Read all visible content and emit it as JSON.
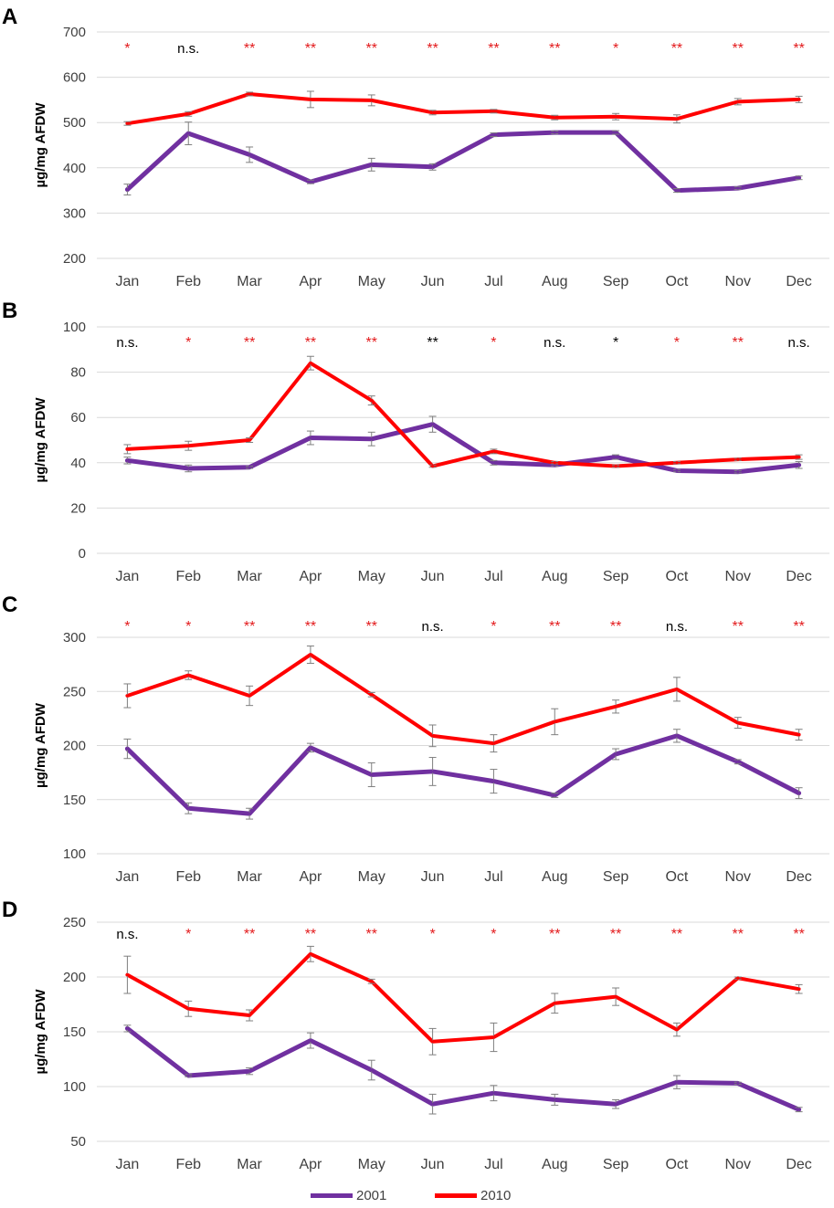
{
  "chart_data": [
    {
      "type": "line",
      "panel_label": "A",
      "ylabel": "µg/mg AFDW",
      "ylim": [
        200,
        700
      ],
      "yticks": [
        "200",
        "300",
        "400",
        "500",
        "600",
        "700"
      ],
      "categories": [
        "Jan",
        "Feb",
        "Mar",
        "Apr",
        "May",
        "Jun",
        "Jul",
        "Aug",
        "Sep",
        "Oct",
        "Nov",
        "Dec"
      ],
      "significance": [
        "*",
        "n.s.",
        "**",
        "**",
        "**",
        "**",
        "**",
        "**",
        "*",
        "**",
        "**",
        "**"
      ],
      "significance_colors": [
        "#e31a1c",
        "#000000",
        "#e31a1c",
        "#e31a1c",
        "#e31a1c",
        "#e31a1c",
        "#e31a1c",
        "#e31a1c",
        "#e31a1c",
        "#e31a1c",
        "#e31a1c",
        "#e31a1c"
      ],
      "series": [
        {
          "name": "2001",
          "color": "#7030a0",
          "values": [
            352,
            476,
            429,
            369,
            407,
            402,
            473,
            478,
            478,
            350,
            355,
            378
          ],
          "errors": [
            12,
            25,
            17,
            4,
            14,
            7,
            4,
            3,
            4,
            4,
            3,
            4
          ]
        },
        {
          "name": "2010",
          "color": "#ff0000",
          "values": [
            498,
            519,
            563,
            551,
            549,
            522,
            525,
            511,
            513,
            508,
            546,
            551
          ],
          "errors": [
            4,
            5,
            4,
            18,
            12,
            5,
            4,
            5,
            7,
            9,
            7,
            7
          ]
        }
      ]
    },
    {
      "type": "line",
      "panel_label": "B",
      "ylabel": "µg/mg AFDW",
      "ylim": [
        0,
        100
      ],
      "yticks": [
        "0",
        "20",
        "40",
        "60",
        "80",
        "100"
      ],
      "categories": [
        "Jan",
        "Feb",
        "Mar",
        "Apr",
        "May",
        "Jun",
        "Jul",
        "Aug",
        "Sep",
        "Oct",
        "Nov",
        "Dec"
      ],
      "significance": [
        "n.s.",
        "*",
        "**",
        "**",
        "**",
        "**",
        "*",
        "n.s.",
        "*",
        "*",
        "**",
        "n.s."
      ],
      "significance_colors": [
        "#000000",
        "#e31a1c",
        "#e31a1c",
        "#e31a1c",
        "#e31a1c",
        "#000000",
        "#e31a1c",
        "#000000",
        "#000000",
        "#e31a1c",
        "#e31a1c",
        "#000000"
      ],
      "series": [
        {
          "name": "2001",
          "color": "#7030a0",
          "values": [
            41,
            37.5,
            38,
            51,
            50.5,
            57,
            40,
            39,
            42.5,
            36.5,
            36,
            39
          ],
          "errors": [
            1.5,
            1.5,
            0.5,
            3,
            3,
            3.5,
            1,
            0.5,
            1,
            0.5,
            0.5,
            1.5
          ]
        },
        {
          "name": "2010",
          "color": "#ff0000",
          "values": [
            46,
            47.5,
            50,
            84,
            67.5,
            38.5,
            45,
            40,
            38.5,
            40,
            41.5,
            42.5
          ],
          "errors": [
            2,
            2,
            1,
            3,
            2,
            0.5,
            1,
            0.5,
            0.5,
            0.5,
            0.5,
            1
          ]
        }
      ]
    },
    {
      "type": "line",
      "panel_label": "C",
      "ylabel": "µg/mg AFDW",
      "ylim": [
        100,
        300
      ],
      "yticks": [
        "100",
        "150",
        "200",
        "250",
        "300"
      ],
      "categories": [
        "Jan",
        "Feb",
        "Mar",
        "Apr",
        "May",
        "Jun",
        "Jul",
        "Aug",
        "Sep",
        "Oct",
        "Nov",
        "Dec"
      ],
      "significance": [
        "*",
        "*",
        "**",
        "**",
        "**",
        "n.s.",
        "*",
        "**",
        "**",
        "n.s.",
        "**",
        "**"
      ],
      "significance_colors": [
        "#e31a1c",
        "#e31a1c",
        "#e31a1c",
        "#e31a1c",
        "#e31a1c",
        "#000000",
        "#e31a1c",
        "#e31a1c",
        "#e31a1c",
        "#000000",
        "#e31a1c",
        "#e31a1c"
      ],
      "series": [
        {
          "name": "2001",
          "color": "#7030a0",
          "values": [
            197,
            142,
            137,
            198,
            173,
            176,
            167,
            154,
            192,
            209,
            185,
            156
          ],
          "errors": [
            9,
            5,
            5,
            4,
            11,
            13,
            11,
            2,
            5,
            6,
            2,
            5
          ]
        },
        {
          "name": "2010",
          "color": "#ff0000",
          "values": [
            246,
            265,
            246,
            284,
            247,
            209,
            202,
            222,
            236,
            252,
            221,
            210
          ],
          "errors": [
            11,
            4,
            9,
            8,
            2,
            10,
            8,
            12,
            6,
            11,
            5,
            5
          ]
        }
      ]
    },
    {
      "type": "line",
      "panel_label": "D",
      "ylabel": "µg/mg AFDW",
      "ylim": [
        50,
        250
      ],
      "yticks": [
        "50",
        "100",
        "150",
        "200",
        "250"
      ],
      "categories": [
        "Jan",
        "Feb",
        "Mar",
        "Apr",
        "May",
        "Jun",
        "Jul",
        "Aug",
        "Sep",
        "Oct",
        "Nov",
        "Dec"
      ],
      "significance": [
        "n.s.",
        "*",
        "**",
        "**",
        "**",
        "*",
        "*",
        "**",
        "**",
        "**",
        "**",
        "**"
      ],
      "significance_colors": [
        "#000000",
        "#e31a1c",
        "#e31a1c",
        "#e31a1c",
        "#e31a1c",
        "#e31a1c",
        "#e31a1c",
        "#e31a1c",
        "#e31a1c",
        "#e31a1c",
        "#e31a1c",
        "#e31a1c"
      ],
      "series": [
        {
          "name": "2001",
          "color": "#7030a0",
          "values": [
            153,
            110,
            114,
            142,
            115,
            84,
            94,
            88,
            84,
            104,
            103,
            79
          ],
          "errors": [
            3,
            1,
            3,
            7,
            9,
            9,
            7,
            5,
            4,
            6,
            1,
            2
          ]
        },
        {
          "name": "2010",
          "color": "#ff0000",
          "values": [
            202,
            171,
            165,
            221,
            196,
            141,
            145,
            176,
            182,
            152,
            199,
            189
          ],
          "errors": [
            17,
            7,
            5,
            7,
            2,
            12,
            13,
            9,
            8,
            6,
            1,
            4
          ]
        }
      ]
    }
  ],
  "legend": [
    {
      "label": "2001",
      "color": "#7030a0"
    },
    {
      "label": "2010",
      "color": "#ff0000"
    }
  ]
}
